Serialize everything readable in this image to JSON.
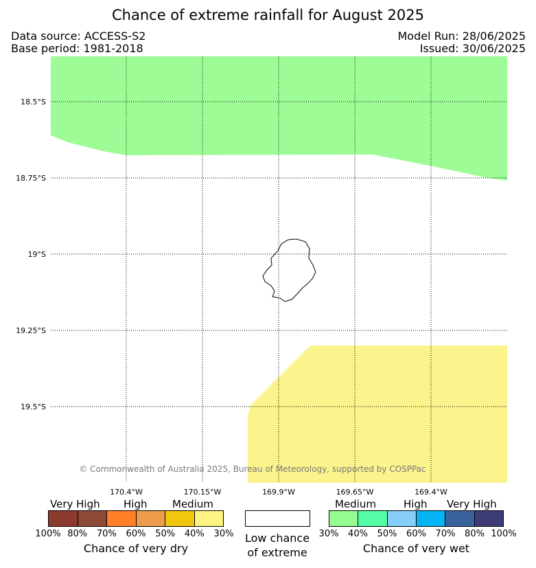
{
  "header": {
    "title": "Chance of extreme rainfall for August 2025",
    "data_source": "Data source: ACCESS-S2",
    "base_period": "Base period: 1981-2018",
    "model_run": "Model Run: 28/06/2025",
    "issued": "Issued: 30/06/2025"
  },
  "map": {
    "lat_labels": [
      "18.5°S",
      "18.75°S",
      "19°S",
      "19.25°S",
      "19.5°S"
    ],
    "lon_labels": [
      "170.4°W",
      "170.15°W",
      "169.9°W",
      "169.65°W",
      "169.4°W"
    ],
    "copyright": "© Commonwealth of Australia 2025, Bureau of Meteorology, supported by COSPPac",
    "regions": [
      {
        "name": "wet-medium-region",
        "category": "Chance of very wet – Medium (30-40%)",
        "color": "#9efc96"
      },
      {
        "name": "dry-medium-region",
        "category": "Chance of very dry – Medium (30-40%)",
        "color": "#fbf38c"
      }
    ]
  },
  "legend": {
    "dry": {
      "categories": [
        "Very High",
        "High",
        "Medium"
      ],
      "colors": [
        "#8b3a2e",
        "#8c4a36",
        "#ff8027",
        "#ed9c4c",
        "#f0c70c",
        "#fcf382"
      ],
      "ticks": [
        "100%",
        "80%",
        "70%",
        "60%",
        "50%",
        "40%",
        "30%"
      ],
      "caption": "Chance of very dry"
    },
    "low": {
      "caption_line1": "Low chance",
      "caption_line2": "of extreme",
      "color": "#ffffff"
    },
    "wet": {
      "categories": [
        "Medium",
        "High",
        "Very High"
      ],
      "colors": [
        "#96fc91",
        "#55fda6",
        "#86cef9",
        "#04b4f3",
        "#3a639d",
        "#3d3c76"
      ],
      "ticks": [
        "30%",
        "40%",
        "50%",
        "60%",
        "70%",
        "80%",
        "100%"
      ],
      "caption": "Chance of very wet"
    }
  }
}
